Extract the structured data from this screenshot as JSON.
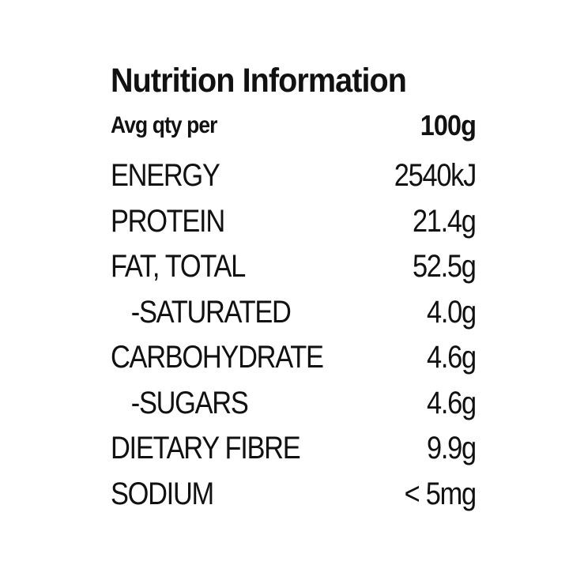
{
  "panel": {
    "title": "Nutrition Information",
    "header_label": "Avg qty per",
    "header_unit": "100g",
    "rows": [
      {
        "name": "ENERGY",
        "value": "2540kJ"
      },
      {
        "name": "PROTEIN",
        "value": "21.4g"
      },
      {
        "name": "FAT, TOTAL",
        "value": "52.5g"
      },
      {
        "name": "-SATURATED",
        "value": "4.0g"
      },
      {
        "name": "CARBOHYDRATE",
        "value": "4.6g"
      },
      {
        "name": "-SUGARS",
        "value": "4.6g"
      },
      {
        "name": "DIETARY FIBRE",
        "value": "9.9g"
      },
      {
        "name": "SODIUM",
        "value": "< 5mg"
      }
    ]
  }
}
